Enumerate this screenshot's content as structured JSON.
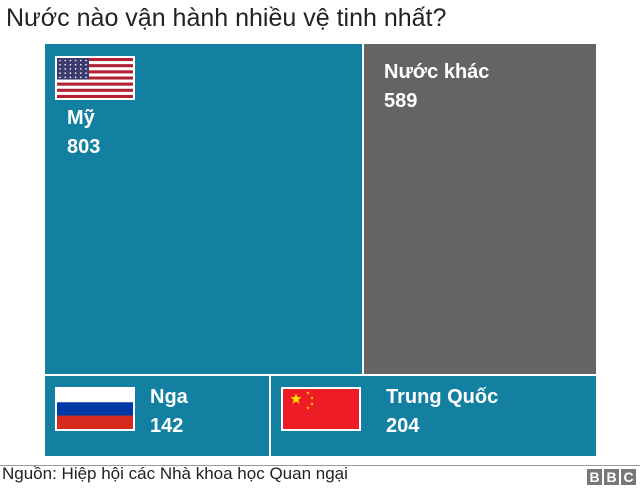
{
  "chart_data": {
    "type": "treemap",
    "title": "Nước nào vận hành nhiều vệ tinh nhất?",
    "items": [
      {
        "label": "Mỹ",
        "value": 803,
        "color": "#1380A1",
        "flag": "us-flag"
      },
      {
        "label": "Nước khác",
        "value": 589,
        "color": "#646464"
      },
      {
        "label": "Nga",
        "value": 142,
        "color": "#1380A1",
        "flag": "russia-flag"
      },
      {
        "label": "Trung Quốc",
        "value": 204,
        "color": "#1380A1",
        "flag": "china-flag"
      }
    ]
  },
  "footer": {
    "source": "Nguồn: Hiệp hội các Nhà khoa học Quan ngại",
    "logo": [
      "B",
      "B",
      "C"
    ]
  }
}
